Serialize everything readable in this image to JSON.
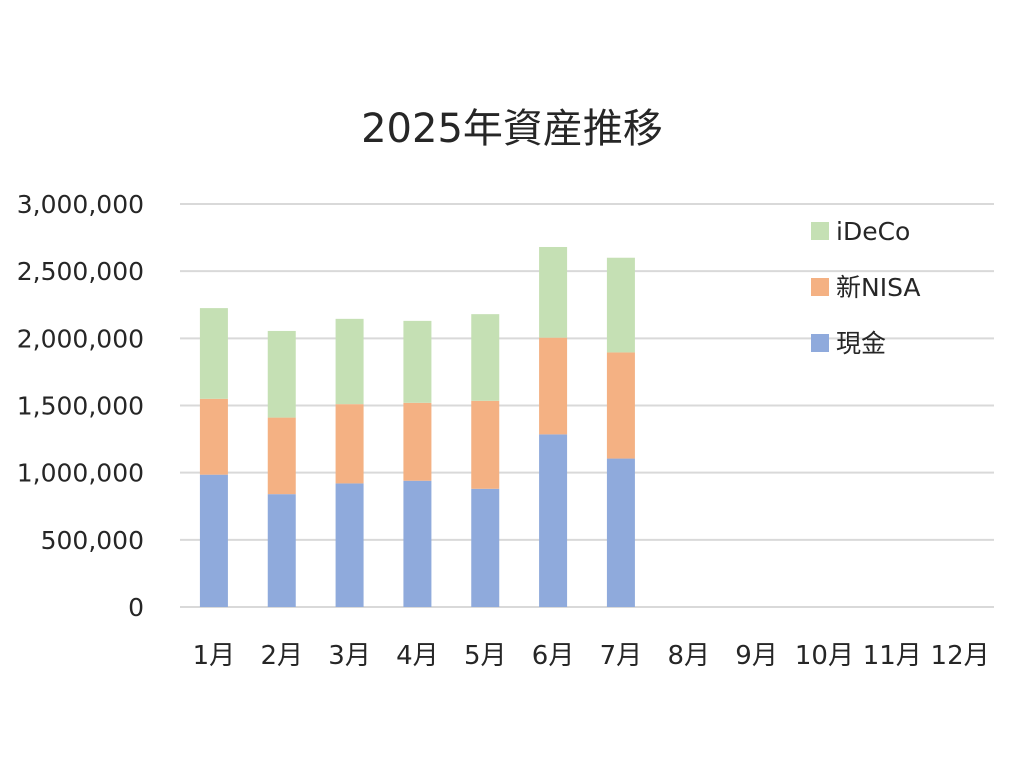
{
  "chart_data": {
    "type": "bar",
    "stacked": true,
    "title": "2025年資産推移",
    "xlabel": "",
    "ylabel": "",
    "categories": [
      "1月",
      "2月",
      "3月",
      "4月",
      "5月",
      "6月",
      "7月",
      "8月",
      "9月",
      "10月",
      "11月",
      "12月"
    ],
    "series": [
      {
        "name": "現金",
        "color": "#8faadc",
        "values": [
          985000,
          840000,
          920000,
          940000,
          880000,
          1285000,
          1105000,
          null,
          null,
          null,
          null,
          null
        ]
      },
      {
        "name": "新NISA",
        "color": "#f4b183",
        "values": [
          565000,
          570000,
          590000,
          580000,
          655000,
          720000,
          790000,
          null,
          null,
          null,
          null,
          null
        ]
      },
      {
        "name": "iDeCo",
        "color": "#c5e0b4",
        "values": [
          675000,
          645000,
          635000,
          610000,
          645000,
          675000,
          705000,
          null,
          null,
          null,
          null,
          null
        ]
      }
    ],
    "ylim": [
      0,
      3000000
    ],
    "yticks": [
      "0",
      "500,000",
      "1,000,000",
      "1,500,000",
      "2,000,000",
      "2,500,000",
      "3,000,000"
    ],
    "ytick_values": [
      0,
      500000,
      1000000,
      1500000,
      2000000,
      2500000,
      3000000
    ],
    "grid": true,
    "legend": {
      "position": "right",
      "order": [
        "iDeCo",
        "新NISA",
        "現金"
      ]
    }
  }
}
